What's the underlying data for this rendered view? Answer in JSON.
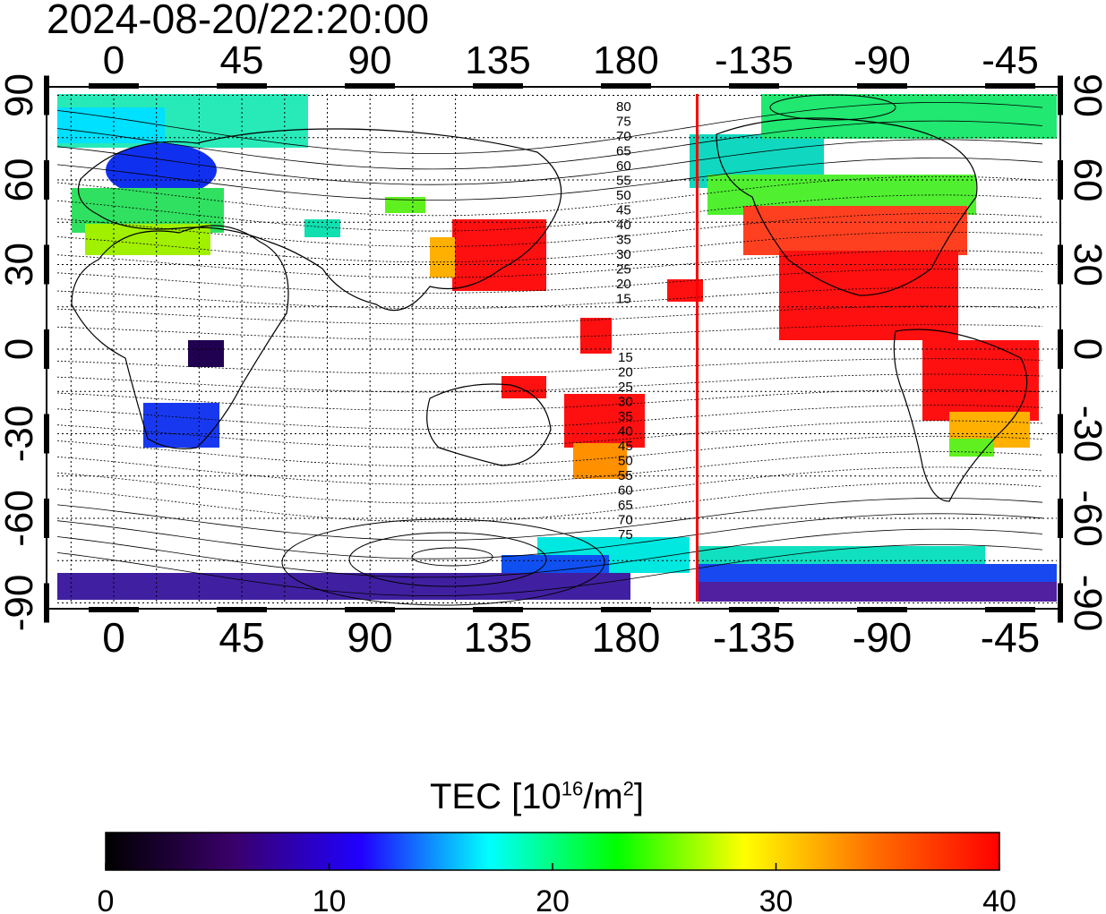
{
  "timestamp": "2024-08-20/22:20:00",
  "map": {
    "top_axis_labels": [
      "0",
      "45",
      "90",
      "135",
      "180",
      "-135",
      "-90",
      "-45"
    ],
    "bottom_axis_labels": [
      "0",
      "45",
      "90",
      "135",
      "180",
      "-135",
      "-90",
      "-45"
    ],
    "left_axis_labels": [
      "90",
      "60",
      "30",
      "0",
      "-30",
      "-60",
      "-90"
    ],
    "right_axis_labels": [
      "90",
      "60",
      "30",
      "0",
      "-30",
      "-60",
      "-90"
    ],
    "contour_labels_north": [
      "80",
      "75",
      "70",
      "65",
      "60",
      "55",
      "50",
      "45",
      "40",
      "35",
      "30",
      "25",
      "20",
      "15"
    ],
    "contour_labels_south": [
      "15",
      "20",
      "25",
      "30",
      "35",
      "40",
      "45",
      "50",
      "55",
      "60",
      "65",
      "70",
      "75"
    ],
    "marker_line_color": "#ff0000",
    "marker_longitude": -155
  },
  "colorbar": {
    "title_prefix": "TEC  [10",
    "title_exp1": "16",
    "title_mid": "/m",
    "title_exp2": "2",
    "title_suffix": "]",
    "min": 0,
    "max": 40,
    "tick_labels": [
      "0",
      "10",
      "20",
      "30",
      "40"
    ],
    "colors": [
      "#000000",
      "#3a006a",
      "#2000ff",
      "#00ffff",
      "#00ff00",
      "#ffff00",
      "#ff7000",
      "#ff0000"
    ]
  }
}
